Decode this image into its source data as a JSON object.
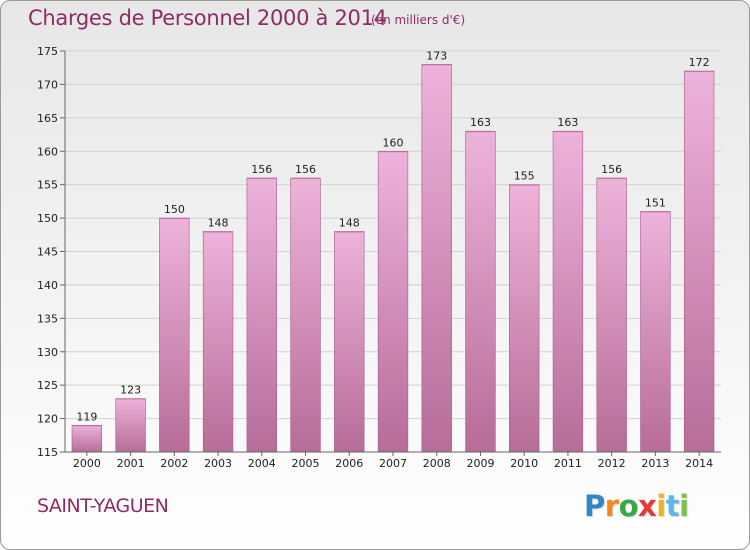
{
  "header": {
    "title": "Charges de Personnel 2000 à 2014",
    "subtitle": "(en milliers d'€)"
  },
  "footer": {
    "commune": "SAINT-YAGUEN",
    "logo_letters": [
      "P",
      "r",
      "o",
      "x",
      "i",
      "t",
      "i"
    ],
    "logo_colors": [
      "#2f86c8",
      "#ef8a1c",
      "#3aa64a",
      "#e23b3b",
      "#f2b31a",
      "#5db7e8",
      "#7cc24a"
    ]
  },
  "colors": {
    "bar_light": "#eeb3da",
    "bar_dark": "#b66d98",
    "text": "#8f2b66"
  },
  "chart_data": {
    "type": "bar",
    "title": "Charges de Personnel 2000 à 2014",
    "subtitle": "(en milliers d'€)",
    "categories": [
      "2000",
      "2001",
      "2002",
      "2003",
      "2004",
      "2005",
      "2006",
      "2007",
      "2008",
      "2009",
      "2010",
      "2011",
      "2012",
      "2013",
      "2014"
    ],
    "values": [
      119,
      123,
      150,
      148,
      156,
      156,
      148,
      160,
      173,
      163,
      155,
      163,
      156,
      151,
      172
    ],
    "ylim": [
      115,
      175
    ],
    "yticks": [
      115,
      120,
      125,
      130,
      135,
      140,
      145,
      150,
      155,
      160,
      165,
      170,
      175
    ],
    "grid": true,
    "data_labels": true,
    "xlabel": "",
    "ylabel": ""
  }
}
